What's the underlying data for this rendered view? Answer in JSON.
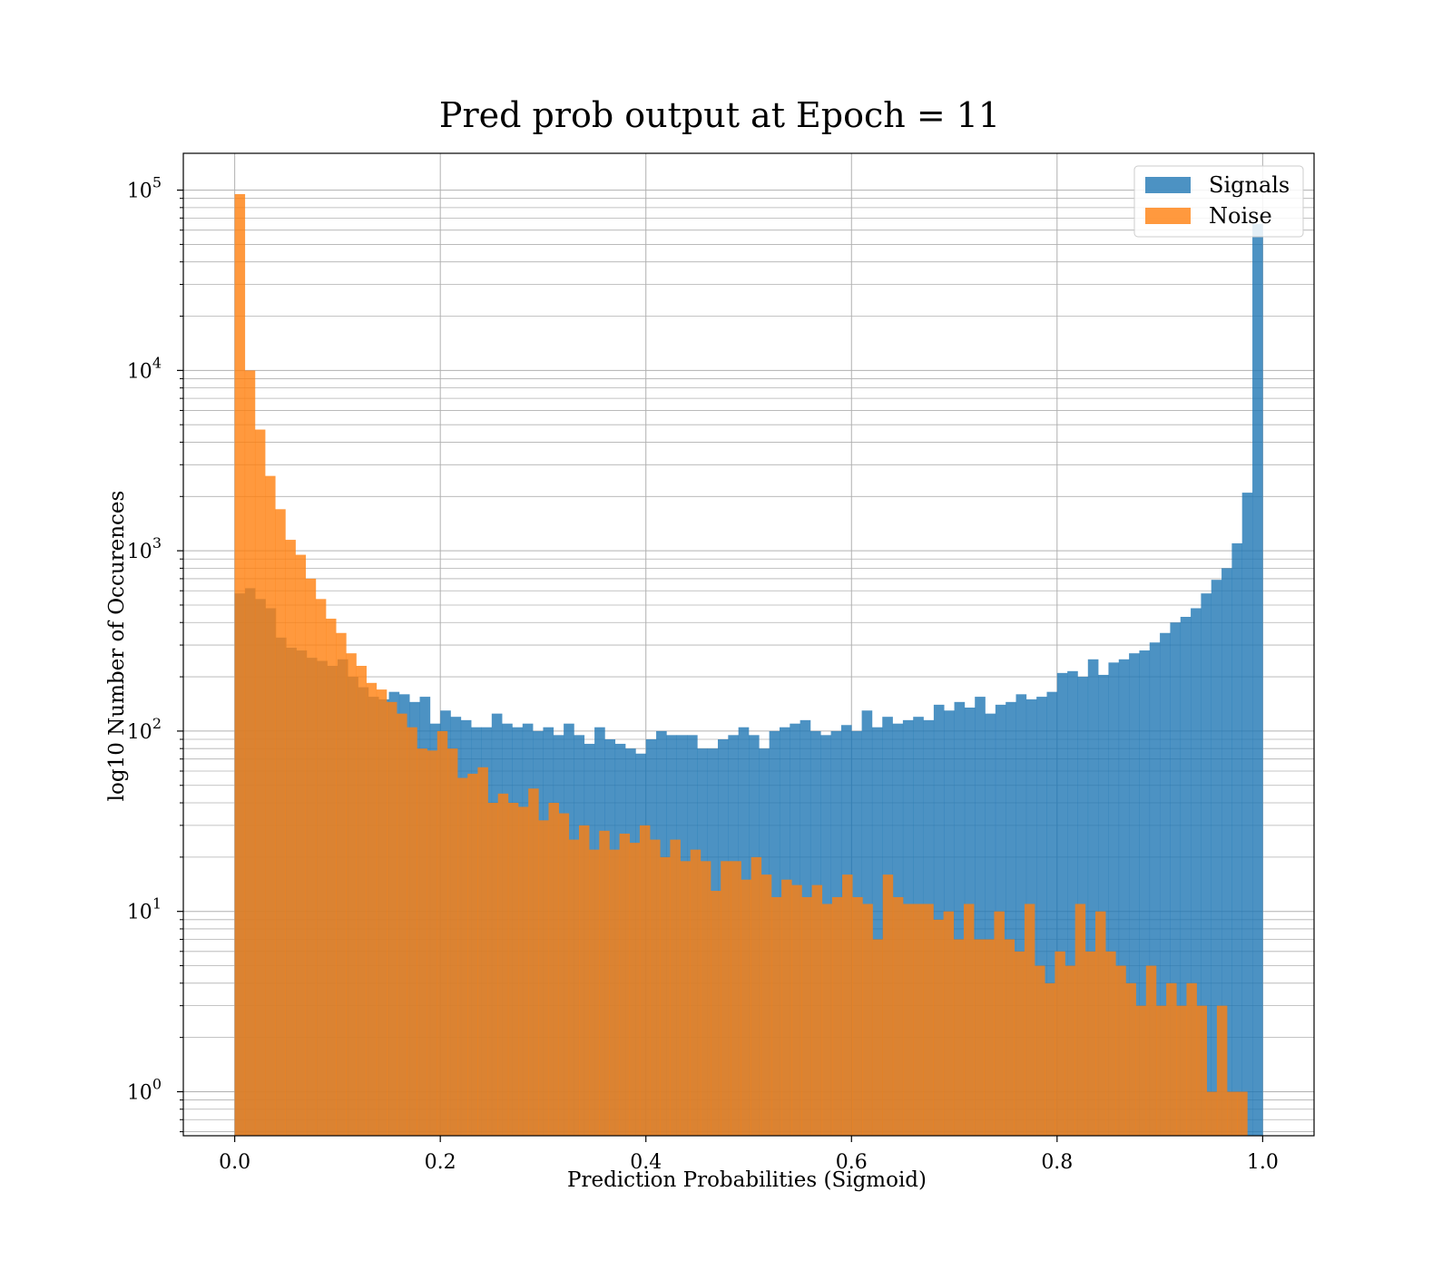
{
  "chart_data": {
    "type": "bar",
    "title": "Pred prob output at Epoch = 11",
    "xlabel": "Prediction Probabilities (Sigmoid)",
    "ylabel": "log10 Number of Occurences",
    "xlim": [
      -0.05,
      1.05
    ],
    "ylim": [
      0.57,
      160000
    ],
    "yscale": "log",
    "grid": true,
    "legend_position": "top-right",
    "x_ticks": [
      0.0,
      0.2,
      0.4,
      0.6,
      0.8,
      1.0
    ],
    "x_tick_labels": [
      "0.0",
      "0.2",
      "0.4",
      "0.6",
      "0.8",
      "1.0"
    ],
    "y_ticks": [
      1,
      10,
      100,
      1000,
      10000,
      100000
    ],
    "y_tick_labels": [
      {
        "base": "10",
        "exp": "0"
      },
      {
        "base": "10",
        "exp": "1"
      },
      {
        "base": "10",
        "exp": "2"
      },
      {
        "base": "10",
        "exp": "3"
      },
      {
        "base": "10",
        "exp": "4"
      },
      {
        "base": "10",
        "exp": "5"
      }
    ],
    "colors": {
      "Signals": "#1f77b4",
      "Noise": "#ff7f0e"
    },
    "series": [
      {
        "name": "Signals",
        "x_start": 0.0,
        "x_end": 1.0,
        "values": [
          580,
          620,
          540,
          480,
          330,
          290,
          280,
          255,
          245,
          230,
          250,
          200,
          175,
          155,
          150,
          165,
          160,
          145,
          155,
          110,
          130,
          120,
          115,
          105,
          105,
          125,
          110,
          105,
          110,
          100,
          105,
          95,
          110,
          95,
          85,
          105,
          90,
          85,
          80,
          75,
          90,
          100,
          95,
          95,
          95,
          80,
          80,
          90,
          95,
          105,
          95,
          80,
          100,
          105,
          110,
          115,
          100,
          95,
          100,
          108,
          100,
          130,
          105,
          120,
          110,
          115,
          120,
          115,
          140,
          130,
          145,
          135,
          155,
          125,
          140,
          145,
          160,
          150,
          155,
          165,
          210,
          215,
          200,
          250,
          205,
          240,
          250,
          270,
          280,
          310,
          350,
          400,
          430,
          480,
          580,
          690,
          800,
          1100,
          2100,
          65000
        ]
      },
      {
        "name": "Noise",
        "x_start": 0.0,
        "x_end": 0.985,
        "values": [
          95000,
          10000,
          4700,
          2600,
          1700,
          1150,
          950,
          700,
          540,
          420,
          350,
          270,
          230,
          185,
          170,
          145,
          125,
          105,
          80,
          78,
          100,
          80,
          55,
          58,
          63,
          40,
          45,
          40,
          38,
          48,
          32,
          40,
          35,
          25,
          30,
          22,
          28,
          22,
          27,
          24,
          30,
          25,
          20,
          25,
          19,
          22,
          19,
          13,
          19,
          19,
          15,
          20,
          16,
          12,
          15,
          14,
          12,
          14,
          11,
          12,
          16,
          12,
          11,
          7,
          16,
          12,
          11,
          11,
          11,
          9,
          10,
          7,
          11,
          7,
          7,
          10,
          7,
          6,
          11,
          5,
          4,
          6,
          5,
          11,
          6,
          10,
          6,
          5,
          4,
          3,
          5,
          3,
          4,
          3,
          4,
          3,
          1,
          3,
          1,
          1
        ]
      }
    ]
  }
}
